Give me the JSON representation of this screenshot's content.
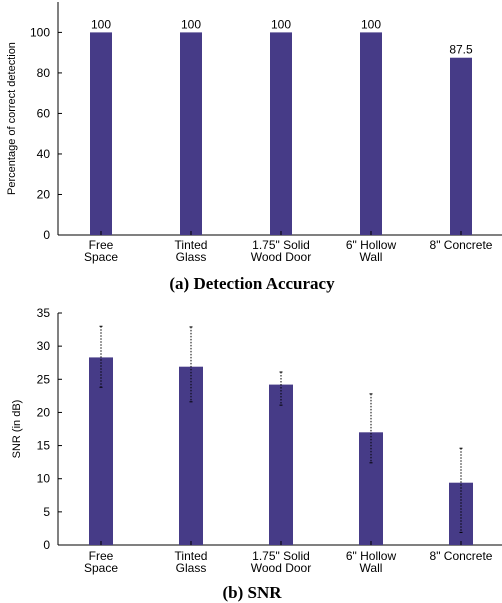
{
  "chart_data": [
    {
      "type": "bar",
      "caption": "(a) Detection Accuracy",
      "ylabel": "Percentage of correct detection",
      "ylim": [
        0,
        115
      ],
      "yticks": [
        "0",
        "20",
        "40",
        "60",
        "80",
        "100"
      ],
      "categories": [
        [
          "Free",
          "Space"
        ],
        [
          "Tinted",
          "Glass"
        ],
        [
          "1.75\" Solid",
          "Wood Door"
        ],
        [
          "6\" Hollow",
          "Wall"
        ],
        [
          "8\" Concrete"
        ]
      ],
      "values": [
        100,
        100,
        100,
        100,
        87.5
      ],
      "data_labels": [
        "100",
        "100",
        "100",
        "100",
        "87.5"
      ],
      "bar_color": "#463b87"
    },
    {
      "type": "bar",
      "caption": "(b) SNR",
      "ylabel": "SNR (in dB)",
      "ylim": [
        0,
        35
      ],
      "yticks": [
        "0",
        "5",
        "10",
        "15",
        "20",
        "25",
        "30",
        "35"
      ],
      "categories": [
        [
          "Free",
          "Space"
        ],
        [
          "Tinted",
          "Glass"
        ],
        [
          "1.75\" Solid",
          "Wood Door"
        ],
        [
          "6\" Hollow",
          "Wall"
        ],
        [
          "8\" Concrete"
        ]
      ],
      "values": [
        28.3,
        26.9,
        24.2,
        17.0,
        9.4
      ],
      "error_low": [
        23.8,
        21.6,
        21.1,
        12.4,
        1.9
      ],
      "error_high": [
        33.0,
        32.9,
        26.1,
        22.8,
        14.6
      ],
      "bar_color": "#463b87"
    }
  ]
}
